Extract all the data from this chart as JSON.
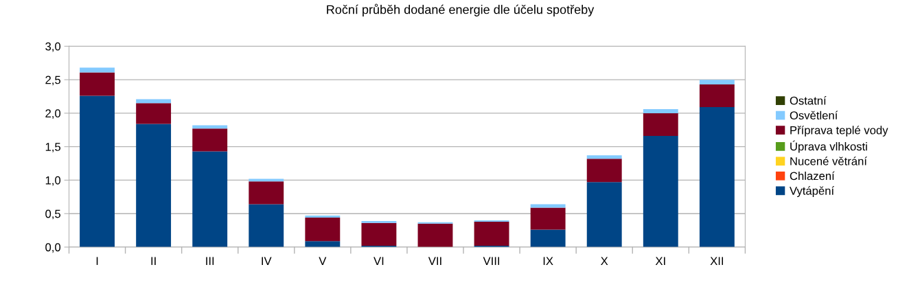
{
  "chart_data": {
    "type": "bar",
    "title": "Roční průběh dodané energie dle účelu spotřeby",
    "categories": [
      "I",
      "II",
      "III",
      "IV",
      "V",
      "VI",
      "VII",
      "VIII",
      "IX",
      "X",
      "XI",
      "XII"
    ],
    "stacked": true,
    "series": [
      {
        "name": "Vytápění",
        "color": "#004586",
        "values": [
          2.26,
          1.84,
          1.43,
          0.64,
          0.09,
          0.02,
          0,
          0.02,
          0.26,
          0.97,
          1.66,
          2.09
        ]
      },
      {
        "name": "Chlazení",
        "color": "#ff420e",
        "values": [
          0,
          0,
          0,
          0,
          0,
          0,
          0,
          0,
          0,
          0,
          0,
          0
        ]
      },
      {
        "name": "Nucené větrání",
        "color": "#ffd320",
        "values": [
          0,
          0,
          0,
          0,
          0,
          0,
          0,
          0,
          0,
          0,
          0,
          0
        ]
      },
      {
        "name": "Úprava vlhkosti",
        "color": "#579d1c",
        "values": [
          0,
          0,
          0,
          0,
          0,
          0,
          0,
          0,
          0,
          0,
          0,
          0
        ]
      },
      {
        "name": "Příprava teplé vody",
        "color": "#7e0021",
        "values": [
          0.35,
          0.31,
          0.34,
          0.34,
          0.35,
          0.34,
          0.35,
          0.36,
          0.33,
          0.35,
          0.34,
          0.34
        ]
      },
      {
        "name": "Osvětlení",
        "color": "#83caff",
        "values": [
          0.07,
          0.06,
          0.05,
          0.04,
          0.03,
          0.03,
          0.02,
          0.02,
          0.05,
          0.05,
          0.06,
          0.07
        ]
      },
      {
        "name": "Ostatní",
        "color": "#314004",
        "values": [
          0,
          0,
          0,
          0,
          0,
          0,
          0,
          0,
          0,
          0,
          0,
          0
        ]
      }
    ],
    "ylim": [
      0,
      3.0
    ],
    "yticks": [
      {
        "value": 0,
        "label": "0,0"
      },
      {
        "value": 0.5,
        "label": "0,5"
      },
      {
        "value": 1.0,
        "label": "1,0"
      },
      {
        "value": 1.5,
        "label": "1,5"
      },
      {
        "value": 2.0,
        "label": "2,0"
      },
      {
        "value": 2.5,
        "label": "2,5"
      },
      {
        "value": 3.0,
        "label": "3,0"
      }
    ],
    "grid": "y",
    "legend": "right"
  }
}
